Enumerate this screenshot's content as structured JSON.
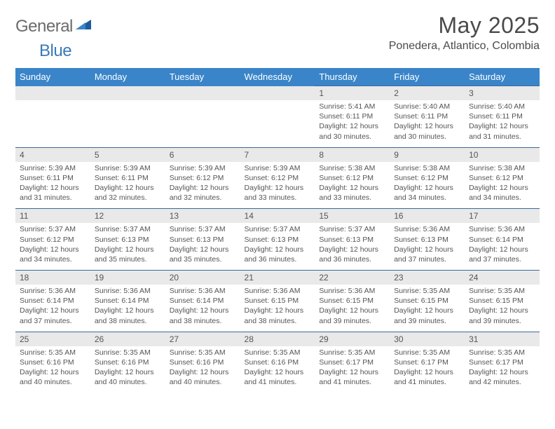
{
  "logo": {
    "text1": "General",
    "text2": "Blue"
  },
  "title": "May 2025",
  "location": "Ponedera, Atlantico, Colombia",
  "colors": {
    "header_bg": "#3a85c9",
    "header_text": "#ffffff",
    "daynum_bg": "#e9e9e9",
    "border": "#3a6a9a",
    "logo_gray": "#6b6b6b",
    "logo_blue": "#3a7ab8"
  },
  "dow": [
    "Sunday",
    "Monday",
    "Tuesday",
    "Wednesday",
    "Thursday",
    "Friday",
    "Saturday"
  ],
  "weeks": [
    [
      null,
      null,
      null,
      null,
      {
        "n": "1",
        "sr": "5:41 AM",
        "ss": "6:11 PM",
        "dl": "12 hours and 30 minutes."
      },
      {
        "n": "2",
        "sr": "5:40 AM",
        "ss": "6:11 PM",
        "dl": "12 hours and 30 minutes."
      },
      {
        "n": "3",
        "sr": "5:40 AM",
        "ss": "6:11 PM",
        "dl": "12 hours and 31 minutes."
      }
    ],
    [
      {
        "n": "4",
        "sr": "5:39 AM",
        "ss": "6:11 PM",
        "dl": "12 hours and 31 minutes."
      },
      {
        "n": "5",
        "sr": "5:39 AM",
        "ss": "6:11 PM",
        "dl": "12 hours and 32 minutes."
      },
      {
        "n": "6",
        "sr": "5:39 AM",
        "ss": "6:12 PM",
        "dl": "12 hours and 32 minutes."
      },
      {
        "n": "7",
        "sr": "5:39 AM",
        "ss": "6:12 PM",
        "dl": "12 hours and 33 minutes."
      },
      {
        "n": "8",
        "sr": "5:38 AM",
        "ss": "6:12 PM",
        "dl": "12 hours and 33 minutes."
      },
      {
        "n": "9",
        "sr": "5:38 AM",
        "ss": "6:12 PM",
        "dl": "12 hours and 34 minutes."
      },
      {
        "n": "10",
        "sr": "5:38 AM",
        "ss": "6:12 PM",
        "dl": "12 hours and 34 minutes."
      }
    ],
    [
      {
        "n": "11",
        "sr": "5:37 AM",
        "ss": "6:12 PM",
        "dl": "12 hours and 34 minutes."
      },
      {
        "n": "12",
        "sr": "5:37 AM",
        "ss": "6:13 PM",
        "dl": "12 hours and 35 minutes."
      },
      {
        "n": "13",
        "sr": "5:37 AM",
        "ss": "6:13 PM",
        "dl": "12 hours and 35 minutes."
      },
      {
        "n": "14",
        "sr": "5:37 AM",
        "ss": "6:13 PM",
        "dl": "12 hours and 36 minutes."
      },
      {
        "n": "15",
        "sr": "5:37 AM",
        "ss": "6:13 PM",
        "dl": "12 hours and 36 minutes."
      },
      {
        "n": "16",
        "sr": "5:36 AM",
        "ss": "6:13 PM",
        "dl": "12 hours and 37 minutes."
      },
      {
        "n": "17",
        "sr": "5:36 AM",
        "ss": "6:14 PM",
        "dl": "12 hours and 37 minutes."
      }
    ],
    [
      {
        "n": "18",
        "sr": "5:36 AM",
        "ss": "6:14 PM",
        "dl": "12 hours and 37 minutes."
      },
      {
        "n": "19",
        "sr": "5:36 AM",
        "ss": "6:14 PM",
        "dl": "12 hours and 38 minutes."
      },
      {
        "n": "20",
        "sr": "5:36 AM",
        "ss": "6:14 PM",
        "dl": "12 hours and 38 minutes."
      },
      {
        "n": "21",
        "sr": "5:36 AM",
        "ss": "6:15 PM",
        "dl": "12 hours and 38 minutes."
      },
      {
        "n": "22",
        "sr": "5:36 AM",
        "ss": "6:15 PM",
        "dl": "12 hours and 39 minutes."
      },
      {
        "n": "23",
        "sr": "5:35 AM",
        "ss": "6:15 PM",
        "dl": "12 hours and 39 minutes."
      },
      {
        "n": "24",
        "sr": "5:35 AM",
        "ss": "6:15 PM",
        "dl": "12 hours and 39 minutes."
      }
    ],
    [
      {
        "n": "25",
        "sr": "5:35 AM",
        "ss": "6:16 PM",
        "dl": "12 hours and 40 minutes."
      },
      {
        "n": "26",
        "sr": "5:35 AM",
        "ss": "6:16 PM",
        "dl": "12 hours and 40 minutes."
      },
      {
        "n": "27",
        "sr": "5:35 AM",
        "ss": "6:16 PM",
        "dl": "12 hours and 40 minutes."
      },
      {
        "n": "28",
        "sr": "5:35 AM",
        "ss": "6:16 PM",
        "dl": "12 hours and 41 minutes."
      },
      {
        "n": "29",
        "sr": "5:35 AM",
        "ss": "6:17 PM",
        "dl": "12 hours and 41 minutes."
      },
      {
        "n": "30",
        "sr": "5:35 AM",
        "ss": "6:17 PM",
        "dl": "12 hours and 41 minutes."
      },
      {
        "n": "31",
        "sr": "5:35 AM",
        "ss": "6:17 PM",
        "dl": "12 hours and 42 minutes."
      }
    ]
  ],
  "labels": {
    "sunrise": "Sunrise:",
    "sunset": "Sunset:",
    "daylight": "Daylight:"
  }
}
